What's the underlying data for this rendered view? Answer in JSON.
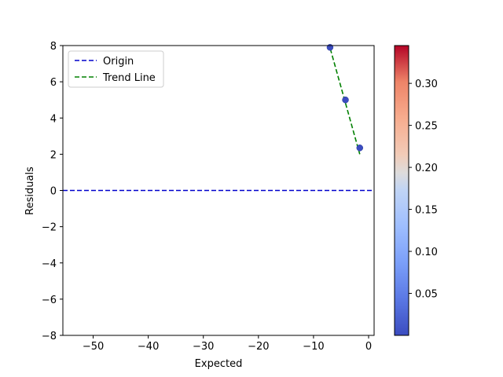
{
  "chart_data": {
    "type": "scatter",
    "title": "",
    "xlabel": "Expected",
    "ylabel": "Residuals",
    "xlim": [
      -55.5,
      1
    ],
    "ylim": [
      -8,
      8
    ],
    "xticks": [
      -50,
      -40,
      -30,
      -20,
      -10,
      0
    ],
    "yticks": [
      -8,
      -6,
      -4,
      -2,
      0,
      2,
      4,
      6,
      8
    ],
    "grid": false,
    "legend_position": "top-left",
    "points": [
      {
        "x": -7,
        "y": 7.9,
        "c": 0.0
      },
      {
        "x": -4.2,
        "y": 5.0,
        "c": 0.0
      },
      {
        "x": -1.6,
        "y": 2.35,
        "c": 0.0
      }
    ],
    "series": [
      {
        "name": "Origin",
        "style": "dashed",
        "color": "#0000cc",
        "x": [
          -55.5,
          1
        ],
        "y": [
          0,
          0
        ]
      },
      {
        "name": "Trend Line",
        "style": "dashed",
        "color": "#008000",
        "x": [
          -7.3,
          -1.6
        ],
        "y": [
          8.2,
          2.0
        ]
      }
    ],
    "colorbar": {
      "colormap": "coolwarm",
      "range": [
        0.0,
        0.345
      ],
      "ticks": [
        0.05,
        0.1,
        0.15,
        0.2,
        0.25,
        0.3
      ],
      "tick_labels": [
        "0.05",
        "0.10",
        "0.15",
        "0.20",
        "0.25",
        "0.30"
      ]
    },
    "point_color": "#3b4cc0"
  }
}
